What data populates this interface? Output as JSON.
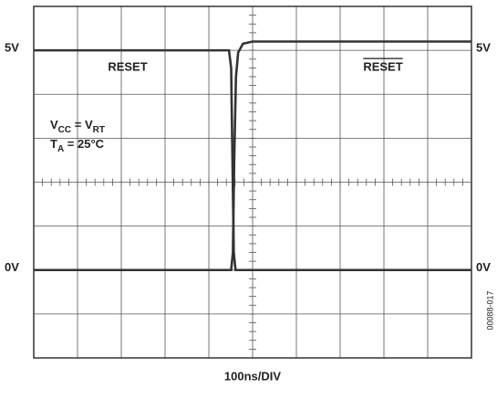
{
  "chart_data": {
    "type": "line",
    "xlabel": "100ns/DIV",
    "figure_id": "00088-017",
    "xlim": [
      0,
      1000
    ],
    "ylim": [
      -2,
      6
    ],
    "yticks": [
      {
        "value": 5,
        "label": "5V"
      },
      {
        "value": 0,
        "label": "0V"
      }
    ],
    "y2lim": [
      -2,
      6
    ],
    "y2ticks": [
      {
        "value": 5,
        "label": "5V"
      },
      {
        "value": 0,
        "label": "0V"
      }
    ],
    "grid": true,
    "series": [
      {
        "name": "RESET",
        "color": "#333333",
        "overline": false,
        "x": [
          0,
          446,
          451,
          454,
          457,
          461,
          1000
        ],
        "values": [
          5,
          5,
          4.6,
          2.5,
          0.4,
          0,
          0
        ]
      },
      {
        "name": "RESET",
        "color": "#333333",
        "overline": true,
        "x": [
          0,
          451,
          455,
          458,
          462,
          467,
          478,
          500,
          1000
        ],
        "values": [
          0,
          0,
          0.4,
          2.5,
          4.4,
          4.95,
          5.15,
          5.2,
          5.2
        ]
      }
    ],
    "conditions": [
      [
        "V",
        "CC",
        " = V",
        "RT"
      ],
      [
        "T",
        "A",
        " = 25°C"
      ]
    ]
  }
}
